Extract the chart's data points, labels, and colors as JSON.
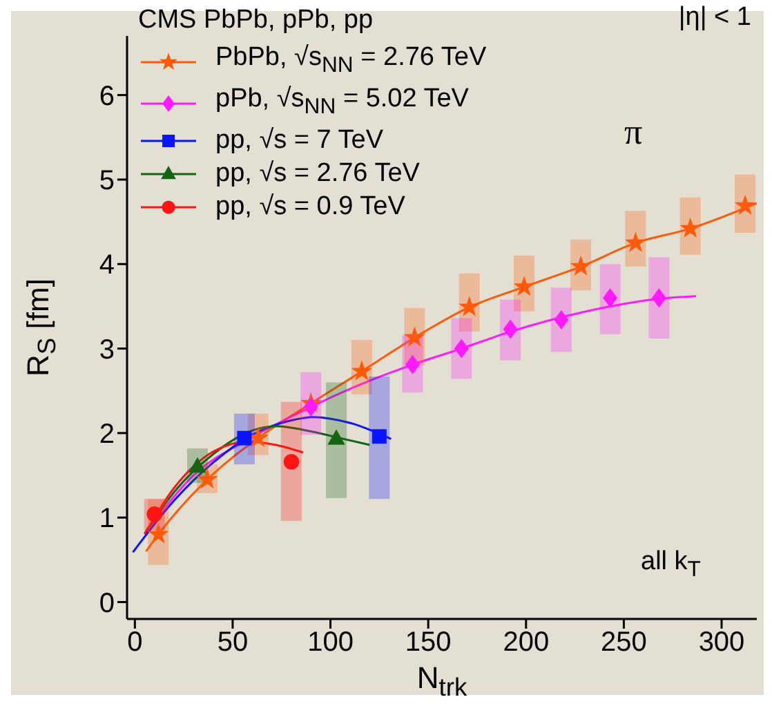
{
  "chart_data": {
    "type": "scatter",
    "title": "CMS PbPb, pPb, pp",
    "xlabel": "N$_{trk}$",
    "ylabel": "R$_{S}$ [fm]",
    "annotations": [
      "|η| < 1",
      "π",
      "all k$_{T}$"
    ],
    "xlim": [
      -4,
      318
    ],
    "xticks": [
      0,
      50,
      100,
      150,
      200,
      250,
      300
    ],
    "ylim": [
      -0.2,
      6.7
    ],
    "yticks": [
      0,
      1,
      2,
      3,
      4,
      5,
      6
    ],
    "grid": false,
    "legend": "top left",
    "series": [
      {
        "type": "line",
        "color": "#ff5a0a",
        "x": [
          5.7,
          12,
          37,
          63,
          90,
          116,
          143,
          171,
          199,
          228,
          256,
          284,
          318
        ],
        "values": [
          0.6,
          0.8,
          1.45,
          1.94,
          2.35,
          2.73,
          3.13,
          3.49,
          3.73,
          3.97,
          4.25,
          4.42,
          4.72
        ]
      },
      {
        "type": "line",
        "color": "#ff1aff",
        "x": [
          5,
          30,
          60,
          90,
          120,
          142,
          167,
          192,
          218,
          243,
          268,
          287
        ],
        "values": [
          0.8,
          1.5,
          1.95,
          2.31,
          2.62,
          2.81,
          3.0,
          3.2,
          3.37,
          3.5,
          3.59,
          3.62
        ]
      },
      {
        "type": "line",
        "color": "#0a14ff",
        "x": [
          -1,
          20,
          40,
          60,
          80,
          91,
          110,
          131
        ],
        "values": [
          0.59,
          1.2,
          1.65,
          1.98,
          2.15,
          2.19,
          2.12,
          1.93
        ]
      },
      {
        "type": "line",
        "color": "#146414",
        "x": [
          5,
          20,
          40,
          60,
          72,
          90,
          105,
          120
        ],
        "values": [
          0.81,
          1.3,
          1.75,
          2.03,
          2.08,
          2.02,
          1.94,
          1.86
        ]
      },
      {
        "type": "line",
        "color": "#ff1414",
        "x": [
          5,
          20,
          40,
          58,
          72,
          86
        ],
        "values": [
          0.81,
          1.35,
          1.78,
          1.9,
          1.86,
          1.77
        ]
      },
      {
        "name": "PbPb, √s$_{NN}$ = 2.76 TeV",
        "marker": "star",
        "color": "#ff5a0a",
        "x": [
          12,
          37,
          63,
          90,
          116,
          143,
          171,
          199,
          228,
          256,
          284,
          312
        ],
        "values": [
          0.8,
          1.45,
          1.94,
          2.35,
          2.73,
          3.13,
          3.49,
          3.73,
          3.97,
          4.25,
          4.42,
          4.69
        ],
        "errors": [
          [
            0.44,
            1.22
          ],
          [
            1.29,
            1.63
          ],
          [
            1.74,
            2.23
          ],
          null,
          [
            2.46,
            3.1
          ],
          [
            2.8,
            3.48
          ],
          [
            3.2,
            3.89
          ],
          [
            3.44,
            4.1
          ],
          [
            3.69,
            4.29
          ],
          [
            3.97,
            4.63
          ],
          [
            4.11,
            4.79
          ],
          [
            4.37,
            5.06
          ]
        ]
      },
      {
        "name": "pPb, √s$_{NN}$ = 5.02 TeV",
        "marker": "diamond",
        "color": "#ff1aff",
        "x": [
          90,
          142,
          167,
          192,
          218,
          243,
          268
        ],
        "values": [
          2.31,
          2.81,
          3.0,
          3.23,
          3.34,
          3.6,
          3.6
        ],
        "errors": [
          [
            1.98,
            2.72
          ],
          [
            2.48,
            3.16
          ],
          [
            2.64,
            3.36
          ],
          [
            2.86,
            3.58
          ],
          [
            2.96,
            3.72
          ],
          [
            3.17,
            4.0
          ],
          [
            3.12,
            4.08
          ]
        ]
      },
      {
        "name": "pp, √s = 7 TeV",
        "marker": "square",
        "color": "#0a14ff",
        "x": [
          56,
          125
        ],
        "values": [
          1.94,
          1.96
        ],
        "errors": [
          [
            1.63,
            2.23
          ],
          [
            1.22,
            2.67
          ]
        ]
      },
      {
        "name": "pp, √s = 2.76 TeV",
        "marker": "triangle",
        "color": "#146414",
        "x": [
          32,
          103
        ],
        "values": [
          1.6,
          1.93
        ],
        "errors": [
          [
            1.41,
            1.82
          ],
          [
            1.23,
            2.6
          ]
        ]
      },
      {
        "name": "pp, √s = 0.9 TeV",
        "marker": "circle",
        "color": "#ff1414",
        "x": [
          10,
          80
        ],
        "values": [
          1.04,
          1.66
        ],
        "errors": [
          [
            0.85,
            1.22
          ],
          [
            0.96,
            2.37
          ]
        ]
      }
    ]
  }
}
